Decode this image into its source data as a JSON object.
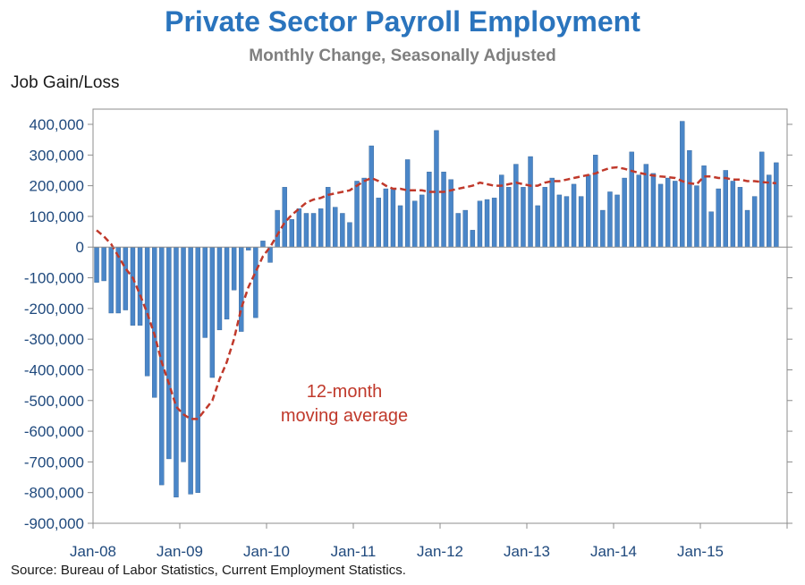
{
  "chart_data": {
    "type": "bar",
    "title": "Private Sector Payroll Employment",
    "subtitle": "Monthly Change, Seasonally Adjusted",
    "ylabel": "Job Gain/Loss",
    "xlabel": "",
    "source": "Source: Bureau of Labor Statistics, Current Employment Statistics.",
    "ylim": [
      -900000,
      450000
    ],
    "yticks": [
      400000,
      300000,
      200000,
      100000,
      0,
      -100000,
      -200000,
      -300000,
      -400000,
      -500000,
      -600000,
      -700000,
      -800000,
      -900000
    ],
    "ytick_labels": [
      "400,000",
      "300,000",
      "200,000",
      "100,000",
      "0",
      "-100,000",
      "-200,000",
      "-300,000",
      "-400,000",
      "-500,000",
      "-600,000",
      "-700,000",
      "-800,000",
      "-900,000"
    ],
    "xtick_labels": [
      "Jan-08",
      "Jan-09",
      "Jan-10",
      "Jan-11",
      "Jan-12",
      "Jan-13",
      "Jan-14",
      "Jan-15"
    ],
    "start_month": "Jan-08",
    "bar_color": "#4a86c8",
    "line_color": "#c0392b",
    "annotation": [
      "12-month",
      "moving average"
    ],
    "series": [
      {
        "name": "Monthly change",
        "type": "bar",
        "values": [
          -115000,
          -110000,
          -215000,
          -215000,
          -205000,
          -255000,
          -255000,
          -420000,
          -490000,
          -775000,
          -690000,
          -815000,
          -700000,
          -805000,
          -800000,
          -295000,
          -425000,
          -270000,
          -235000,
          -140000,
          -275000,
          -10000,
          -230000,
          20000,
          -50000,
          120000,
          195000,
          90000,
          125000,
          110000,
          110000,
          125000,
          195000,
          130000,
          110000,
          80000,
          215000,
          225000,
          330000,
          160000,
          190000,
          190000,
          135000,
          285000,
          150000,
          170000,
          245000,
          380000,
          245000,
          220000,
          110000,
          120000,
          55000,
          150000,
          155000,
          160000,
          235000,
          195000,
          270000,
          195000,
          295000,
          135000,
          195000,
          225000,
          170000,
          165000,
          205000,
          165000,
          235000,
          300000,
          120000,
          180000,
          170000,
          225000,
          310000,
          235000,
          270000,
          240000,
          205000,
          225000,
          215000,
          410000,
          315000,
          200000,
          265000,
          115000,
          190000,
          250000,
          215000,
          195000,
          120000,
          165000,
          310000,
          235000,
          275000
        ]
      },
      {
        "name": "12-month moving average",
        "type": "line",
        "values": [
          55000,
          35000,
          10000,
          -30000,
          -70000,
          -100000,
          -155000,
          -215000,
          -285000,
          -375000,
          -445000,
          -520000,
          -545000,
          -560000,
          -560000,
          -530000,
          -500000,
          -430000,
          -375000,
          -300000,
          -200000,
          -130000,
          -80000,
          -30000,
          0,
          40000,
          80000,
          105000,
          125000,
          145000,
          155000,
          160000,
          170000,
          175000,
          180000,
          185000,
          200000,
          215000,
          225000,
          215000,
          200000,
          190000,
          190000,
          185000,
          185000,
          185000,
          180000,
          180000,
          180000,
          185000,
          190000,
          195000,
          200000,
          210000,
          205000,
          200000,
          200000,
          205000,
          210000,
          205000,
          200000,
          200000,
          210000,
          215000,
          215000,
          220000,
          225000,
          230000,
          235000,
          240000,
          250000,
          258000,
          260000,
          255000,
          248000,
          242000,
          237000,
          233000,
          230000,
          228000,
          225000,
          215000,
          208000,
          205000,
          230000,
          230000,
          225000,
          225000,
          220000,
          220000,
          215000,
          215000,
          212000,
          210000,
          208000
        ]
      }
    ]
  }
}
